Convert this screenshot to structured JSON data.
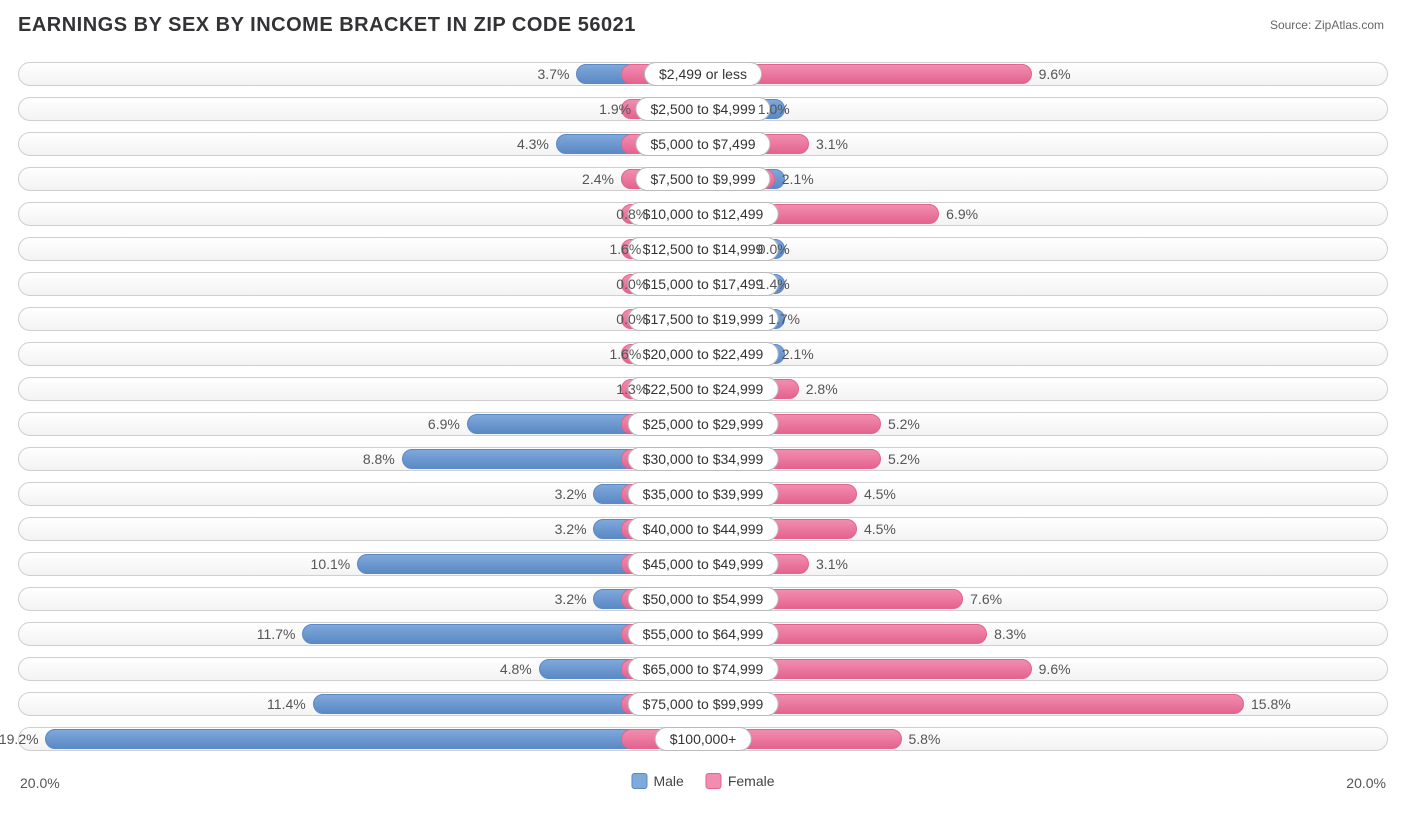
{
  "title": "EARNINGS BY SEX BY INCOME BRACKET IN ZIP CODE 56021",
  "source": "Source: ZipAtlas.com",
  "axis_max_label": "20.0%",
  "axis_max_value": 20.0,
  "legend": {
    "male": "Male",
    "female": "Female"
  },
  "colors": {
    "male_fill": "#7fa8db",
    "male_border": "#5b89c4",
    "female_fill": "#f18db0",
    "female_border": "#e4638f",
    "track_border": "#cfcfcf",
    "text": "#555555"
  },
  "label_half_width_pct": 6.0,
  "rows": [
    {
      "label": "$2,499 or less",
      "male": 3.7,
      "female": 9.6
    },
    {
      "label": "$2,500 to $4,999",
      "male": 1.9,
      "female": 1.0
    },
    {
      "label": "$5,000 to $7,499",
      "male": 4.3,
      "female": 3.1
    },
    {
      "label": "$7,500 to $9,999",
      "male": 2.4,
      "female": 2.1
    },
    {
      "label": "$10,000 to $12,499",
      "male": 0.8,
      "female": 6.9
    },
    {
      "label": "$12,500 to $14,999",
      "male": 1.6,
      "female": 0.0
    },
    {
      "label": "$15,000 to $17,499",
      "male": 0.0,
      "female": 1.4
    },
    {
      "label": "$17,500 to $19,999",
      "male": 0.0,
      "female": 1.7
    },
    {
      "label": "$20,000 to $22,499",
      "male": 1.6,
      "female": 2.1
    },
    {
      "label": "$22,500 to $24,999",
      "male": 1.3,
      "female": 2.8
    },
    {
      "label": "$25,000 to $29,999",
      "male": 6.9,
      "female": 5.2
    },
    {
      "label": "$30,000 to $34,999",
      "male": 8.8,
      "female": 5.2
    },
    {
      "label": "$35,000 to $39,999",
      "male": 3.2,
      "female": 4.5
    },
    {
      "label": "$40,000 to $44,999",
      "male": 3.2,
      "female": 4.5
    },
    {
      "label": "$45,000 to $49,999",
      "male": 10.1,
      "female": 3.1
    },
    {
      "label": "$50,000 to $54,999",
      "male": 3.2,
      "female": 7.6
    },
    {
      "label": "$55,000 to $64,999",
      "male": 11.7,
      "female": 8.3
    },
    {
      "label": "$65,000 to $74,999",
      "male": 4.8,
      "female": 9.6
    },
    {
      "label": "$75,000 to $99,999",
      "male": 11.4,
      "female": 15.8
    },
    {
      "label": "$100,000+",
      "male": 19.2,
      "female": 5.8
    }
  ]
}
